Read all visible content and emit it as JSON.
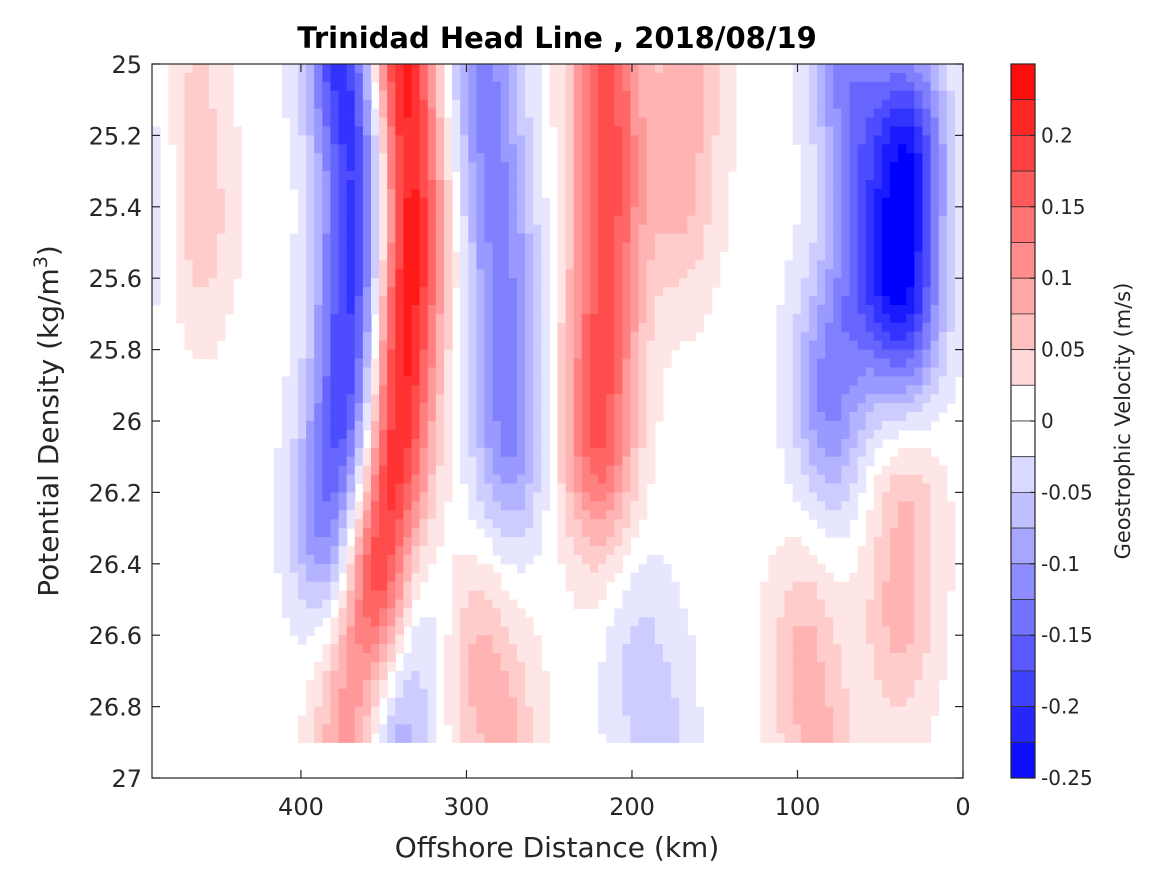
{
  "chart_data": {
    "type": "contour",
    "title": "Trinidad Head Line , 2018/08/19",
    "xlabel": "Offshore Distance (km)",
    "ylabel_main": "Potential Density (kg/m",
    "ylabel_sup": "3",
    "ylabel_close": ")",
    "xlim": [
      490,
      0
    ],
    "ylim": [
      25,
      27
    ],
    "x_reversed": true,
    "y_reversed": true,
    "x_ticks": [
      400,
      300,
      200,
      100,
      0
    ],
    "x_tick_labels": [
      "400",
      "300",
      "200",
      "100",
      "0"
    ],
    "y_ticks": [
      25,
      25.2,
      25.4,
      25.6,
      25.8,
      26,
      26.2,
      26.4,
      26.6,
      26.8,
      27
    ],
    "y_tick_labels": [
      "25",
      "25.2",
      "25.4",
      "25.6",
      "25.8",
      "26",
      "26.2",
      "26.4",
      "26.6",
      "26.8",
      "27"
    ],
    "colorbar": {
      "label": "Geostrophic Velocity (m/s)",
      "range": [
        -0.25,
        0.25
      ],
      "level_step": 0.025,
      "ticks": [
        0.2,
        0.15,
        0.1,
        0.05,
        0,
        -0.05,
        -0.1,
        -0.15,
        -0.2,
        -0.25
      ],
      "tick_labels": [
        "0.2",
        "0.15",
        "0.1",
        "0.05",
        "0",
        "-0.05",
        "-0.1",
        "-0.15",
        "-0.2",
        "-0.25"
      ],
      "colormap": "blue-white-red"
    },
    "colors": {
      "positive_max": "#ff0000",
      "negative_max": "#0000ff",
      "zero": "#ffffff"
    },
    "features": [
      {
        "polarity": "negative",
        "peak": -0.225,
        "core": [
          [
            373,
            25.0
          ],
          [
            365,
            25.3
          ],
          [
            370,
            25.9
          ],
          [
            380,
            26.3
          ]
        ]
      },
      {
        "polarity": "positive",
        "peak": 0.25,
        "core": [
          [
            340,
            25.0
          ],
          [
            335,
            25.5
          ],
          [
            345,
            26.1
          ],
          [
            350,
            26.4
          ]
        ]
      },
      {
        "polarity": "negative",
        "peak": -0.125,
        "core": [
          [
            290,
            25.0
          ],
          [
            280,
            25.5
          ],
          [
            275,
            26.0
          ]
        ]
      },
      {
        "polarity": "positive",
        "peak": 0.175,
        "core": [
          [
            215,
            25.0
          ],
          [
            215,
            25.5
          ],
          [
            220,
            26.0
          ]
        ]
      },
      {
        "polarity": "positive",
        "peak": 0.075,
        "core": [
          [
            470,
            25.0
          ],
          [
            465,
            25.4
          ]
        ]
      },
      {
        "polarity": "negative",
        "peak": -0.05,
        "core": [
          [
            480,
            25.0
          ],
          [
            485,
            25.4
          ]
        ]
      },
      {
        "polarity": "positive",
        "peak": 0.075,
        "core": [
          [
            165,
            25.0
          ],
          [
            170,
            25.3
          ]
        ]
      },
      {
        "polarity": "negative",
        "peak": -0.125,
        "core": [
          [
            70,
            25.0
          ],
          [
            60,
            25.5
          ],
          [
            80,
            25.9
          ]
        ]
      },
      {
        "polarity": "negative",
        "peak": -0.225,
        "core": [
          [
            33,
            25.3
          ],
          [
            35,
            25.6
          ]
        ]
      },
      {
        "polarity": "positive",
        "peak": 0.125,
        "core": [
          [
            375,
            26.5
          ],
          [
            370,
            26.85
          ]
        ]
      },
      {
        "polarity": "negative",
        "peak": -0.125,
        "core": [
          [
            340,
            26.6
          ],
          [
            345,
            26.85
          ]
        ]
      },
      {
        "polarity": "positive",
        "peak": 0.075,
        "core": [
          [
            290,
            26.7
          ],
          [
            280,
            26.85
          ]
        ]
      },
      {
        "polarity": "negative",
        "peak": -0.05,
        "core": [
          [
            195,
            26.7
          ],
          [
            185,
            26.85
          ]
        ]
      },
      {
        "polarity": "positive",
        "peak": 0.075,
        "core": [
          [
            95,
            26.7
          ],
          [
            90,
            26.85
          ]
        ]
      },
      {
        "polarity": "positive",
        "peak": 0.075,
        "core": [
          [
            35,
            26.3
          ],
          [
            38,
            26.5
          ]
        ]
      }
    ]
  }
}
